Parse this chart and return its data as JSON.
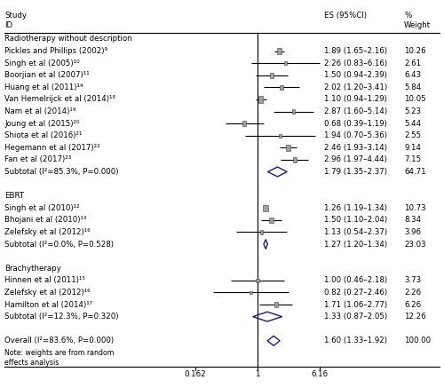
{
  "sections": [
    {
      "title": "Radiotherapy without description",
      "studies": [
        {
          "label": "Pickles and Phillips (2002)⁹",
          "es": 1.89,
          "lo": 1.65,
          "hi": 2.16,
          "weight": 10.26
        },
        {
          "label": "Singh et al (2005)¹⁰",
          "es": 2.26,
          "lo": 0.83,
          "hi": 6.16,
          "weight": 2.61
        },
        {
          "label": "Boorjian et al (2007)¹¹",
          "es": 1.5,
          "lo": 0.94,
          "hi": 2.39,
          "weight": 6.43
        },
        {
          "label": "Huang et al (2011)¹⁴",
          "es": 2.02,
          "lo": 1.2,
          "hi": 3.41,
          "weight": 5.84
        },
        {
          "label": "Van Hemelrijck et al (2014)¹⁸",
          "es": 1.1,
          "lo": 0.94,
          "hi": 1.29,
          "weight": 10.05
        },
        {
          "label": "Nam et al (2014)¹⁹",
          "es": 2.87,
          "lo": 1.6,
          "hi": 5.14,
          "weight": 5.23
        },
        {
          "label": "Joung et al (2015)²⁰",
          "es": 0.68,
          "lo": 0.39,
          "hi": 1.19,
          "weight": 5.44
        },
        {
          "label": "Shiota et al (2016)²¹",
          "es": 1.94,
          "lo": 0.7,
          "hi": 5.36,
          "weight": 2.55
        },
        {
          "label": "Hegemann et al (2017)²²",
          "es": 2.46,
          "lo": 1.93,
          "hi": 3.14,
          "weight": 9.14
        },
        {
          "label": "Fan et al (2017)²³",
          "es": 2.96,
          "lo": 1.97,
          "hi": 4.44,
          "weight": 7.15
        }
      ],
      "subtotal": {
        "label": "Subtotal (I²=85.3%, P=0.000)",
        "es": 1.79,
        "lo": 1.35,
        "hi": 2.37,
        "weight": 64.71
      }
    },
    {
      "title": "EBRT",
      "studies": [
        {
          "label": "Singh et al (2010)¹²",
          "es": 1.26,
          "lo": 1.19,
          "hi": 1.34,
          "weight": 10.73
        },
        {
          "label": "Bhojani et al (2010)¹³",
          "es": 1.5,
          "lo": 1.1,
          "hi": 2.04,
          "weight": 8.34
        },
        {
          "label": "Zelefsky et al (2012)¹⁶",
          "es": 1.13,
          "lo": 0.54,
          "hi": 2.37,
          "weight": 3.96
        }
      ],
      "subtotal": {
        "label": "Subtotal (I²=0.0%, P=0.528)",
        "es": 1.27,
        "lo": 1.2,
        "hi": 1.34,
        "weight": 23.03
      }
    },
    {
      "title": "Brachytherapy",
      "studies": [
        {
          "label": "Hinnen et al (2011)¹⁵",
          "es": 1.0,
          "lo": 0.46,
          "hi": 2.18,
          "weight": 3.73
        },
        {
          "label": "Zelefsky et al (2012)¹⁶",
          "es": 0.82,
          "lo": 0.27,
          "hi": 2.46,
          "weight": 2.26
        },
        {
          "label": "Hamilton et al (2014)¹⁷",
          "es": 1.71,
          "lo": 1.06,
          "hi": 2.77,
          "weight": 6.26
        }
      ],
      "subtotal": {
        "label": "Subtotal (I²=12.3%, P=0.320)",
        "es": 1.33,
        "lo": 0.87,
        "hi": 2.05,
        "weight": 12.26
      }
    }
  ],
  "overall": {
    "label": "Overall (I²=83.6%, P=0.000)",
    "es": 1.6,
    "lo": 1.33,
    "hi": 1.92,
    "weight": 100.0
  },
  "note": "Note: weights are from random\neffects analysis",
  "xmin": 0.162,
  "xmax": 6.16,
  "xref": 1.0,
  "xticks": [
    0.162,
    1.0,
    6.16
  ],
  "xticklabels": [
    "0.162",
    "1",
    "6.16"
  ],
  "diamond_color": "#1a1a8c",
  "box_color": "#a0a0a0",
  "max_weight": 10.73,
  "fontsize": 6.2,
  "label_fontsize": 6.2
}
